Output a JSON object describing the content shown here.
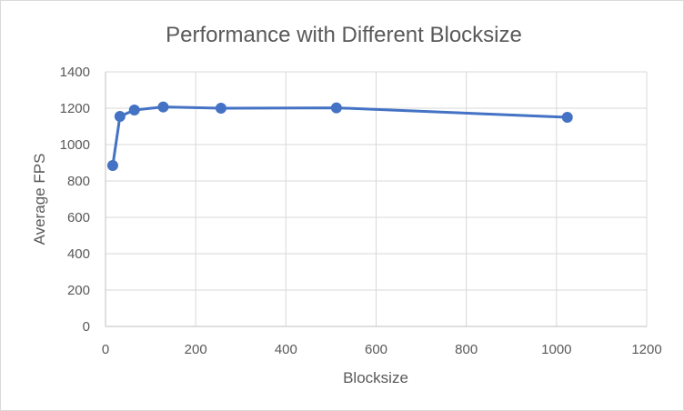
{
  "chart_data": {
    "type": "scatter",
    "mode": "lines+markers",
    "title": "Performance with Different Blocksize",
    "xlabel": "Blocksize",
    "ylabel": "Average FPS",
    "xlim": [
      0,
      1200
    ],
    "ylim": [
      0,
      1400
    ],
    "xticks": [
      0,
      200,
      400,
      600,
      800,
      1000,
      1200
    ],
    "yticks": [
      0,
      200,
      400,
      600,
      800,
      1000,
      1200,
      1400
    ],
    "grid": true,
    "legend": "none",
    "series": [
      {
        "color": "#4472c4",
        "x": [
          16,
          32,
          64,
          128,
          256,
          512,
          1024
        ],
        "y": [
          885,
          1155,
          1190,
          1207,
          1200,
          1202,
          1150
        ]
      }
    ]
  }
}
